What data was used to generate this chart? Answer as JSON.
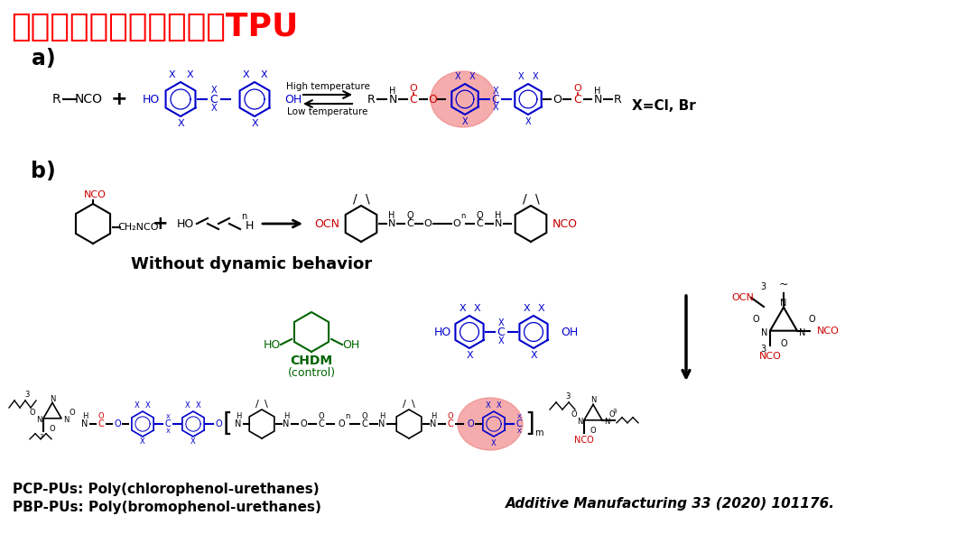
{
  "title_cn": "分子设计含卤代双酚动态",
  "title_en": "TPU",
  "title_color": "#FF0000",
  "title_fontsize": 26,
  "background_color": "#FFFFFF",
  "section_a_label": "a)",
  "section_b_label": "b)",
  "label_fontsize": 18,
  "annotation_high_temp": "High temperature",
  "annotation_low_temp": "Low temperature",
  "annotation_x_eq": "X=Cl, Br",
  "annotation_without_dynamic": "Without dynamic behavior",
  "annotation_chdm_line1": "CHDM",
  "annotation_chdm_line2": "(control)",
  "annotation_pcp": "PCP-PUs: Poly(chlorophenol-urethanes)",
  "annotation_pbp": "PBP-PUs: Poly(bromophenol-urethanes)",
  "annotation_journal": "Additive Manufacturing 33 (2020) 101176.",
  "highlight_color": "#F08080",
  "blue_color": "#0000CC",
  "red_color": "#CC0000",
  "green_color": "#006400",
  "black_color": "#000000",
  "fig_width": 10.8,
  "fig_height": 5.92,
  "dpi": 100
}
